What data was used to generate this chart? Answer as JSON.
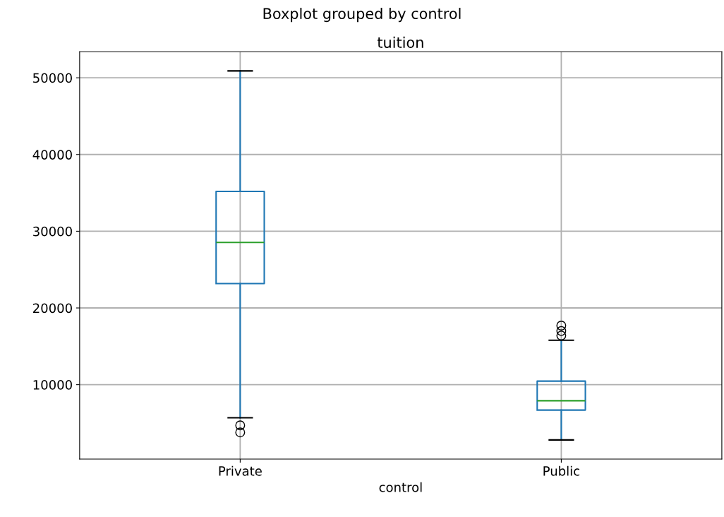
{
  "chart_data": {
    "type": "box",
    "title": "Boxplot grouped by control",
    "subtitle": "tuition",
    "xlabel": "control",
    "categories": [
      "Private",
      "Public"
    ],
    "boxes": [
      {
        "low": 5680,
        "q1": 23180,
        "median": 28540,
        "q3": 35195,
        "high": 50900,
        "outliers": [
          4700,
          3780
        ]
      },
      {
        "low": 2800,
        "q1": 6690,
        "median": 7910,
        "q3": 10460,
        "high": 15790,
        "outliers": [
          16400,
          17000,
          17700
        ]
      }
    ],
    "ylim": [
      300,
      53400
    ],
    "yticks": [
      10000,
      20000,
      30000,
      40000,
      50000
    ],
    "grid": true
  }
}
